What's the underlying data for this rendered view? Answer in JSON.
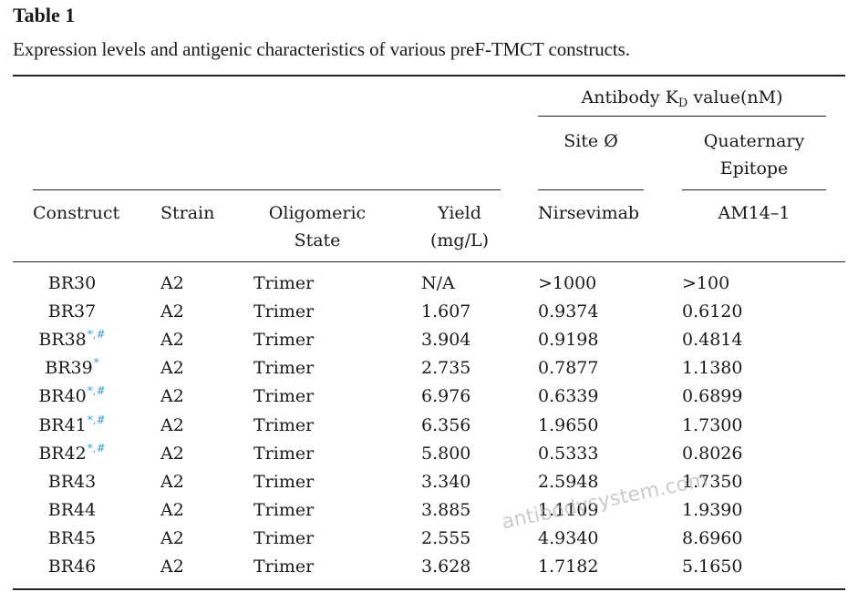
{
  "table": {
    "label": "Table 1",
    "caption": "Expression levels and antigenic characteristics of various preF-TMCT constructs.",
    "group_header": {
      "prefix": "Antibody K",
      "subscript": "D",
      "suffix": " value(nM)"
    },
    "subgroups": {
      "site": "Site Ø",
      "quaternary_line1": "Quaternary",
      "quaternary_line2": "Epitope"
    },
    "columns": {
      "construct": "Construct",
      "strain": "Strain",
      "oligomeric_line1": "Oligomeric",
      "oligomeric_line2": "State",
      "yield_line1": "Yield",
      "yield_line2": "(mg/L)",
      "nirsevimab": "Nirsevimab",
      "am14": "AM14–1"
    },
    "rows": [
      {
        "construct": "BR30",
        "mark": "",
        "strain": "A2",
        "state": "Trimer",
        "yield": "N/A",
        "nirsevimab": ">1000",
        "am14": ">100"
      },
      {
        "construct": "BR37",
        "mark": "",
        "strain": "A2",
        "state": "Trimer",
        "yield": "1.607",
        "nirsevimab": "0.9374",
        "am14": "0.6120"
      },
      {
        "construct": "BR38",
        "mark": "*,#",
        "strain": "A2",
        "state": "Trimer",
        "yield": "3.904",
        "nirsevimab": "0.9198",
        "am14": "0.4814"
      },
      {
        "construct": "BR39",
        "mark": "*",
        "strain": "A2",
        "state": "Trimer",
        "yield": "2.735",
        "nirsevimab": "0.7877",
        "am14": "1.1380"
      },
      {
        "construct": "BR40",
        "mark": "*,#",
        "strain": "A2",
        "state": "Trimer",
        "yield": "6.976",
        "nirsevimab": "0.6339",
        "am14": "0.6899"
      },
      {
        "construct": "BR41",
        "mark": "*,#",
        "strain": "A2",
        "state": "Trimer",
        "yield": "6.356",
        "nirsevimab": "1.9650",
        "am14": "1.7300"
      },
      {
        "construct": "BR42",
        "mark": "*,#",
        "strain": "A2",
        "state": "Trimer",
        "yield": "5.800",
        "nirsevimab": "0.5333",
        "am14": "0.8026"
      },
      {
        "construct": "BR43",
        "mark": "",
        "strain": "A2",
        "state": "Trimer",
        "yield": "3.340",
        "nirsevimab": "2.5948",
        "am14": "1.7350"
      },
      {
        "construct": "BR44",
        "mark": "",
        "strain": "A2",
        "state": "Trimer",
        "yield": "3.885",
        "nirsevimab": "1.1109",
        "am14": "1.9390"
      },
      {
        "construct": "BR45",
        "mark": "",
        "strain": "A2",
        "state": "Trimer",
        "yield": "2.555",
        "nirsevimab": "4.9340",
        "am14": "8.6960"
      },
      {
        "construct": "BR46",
        "mark": "",
        "strain": "A2",
        "state": "Trimer",
        "yield": "3.628",
        "nirsevimab": "1.7182",
        "am14": "5.1650"
      }
    ]
  },
  "watermark": "antibodysystem.com",
  "colors": {
    "footnote_mark": "#3aa0d8",
    "text": "#1a1a1a"
  }
}
